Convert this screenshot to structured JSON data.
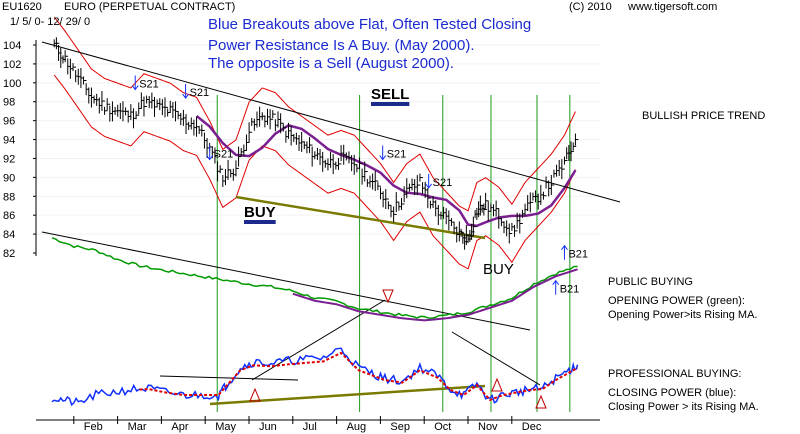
{
  "header": {
    "ticker": "EU1620",
    "name": "EURO  (PERPETUAL CONTRACT)",
    "date_range": "1/ 5/ 0- 12/ 29/ 0",
    "copyright": "(C) 2010",
    "site": "www.tigersoft.com"
  },
  "notes": {
    "line1": "Blue Breakouts above Flat, Often Tested Closing",
    "line2": "Power Resistance Is A Buy.  (May 2000).",
    "line3": "The opposite is a Sell (August 2000)."
  },
  "labels": {
    "trend": "BULLISH PRICE TREND",
    "buy1": "BUY",
    "buy2": "BUY",
    "sell": "SELL",
    "public_title": "PUBLIC BUYING",
    "opening_title": "OPENING POWER (green):",
    "opening_desc": "Opening Power>its Rising MA.",
    "pro_title": "PROFESSIONAL BUYING:",
    "closing_title": "CLOSING POWER (blue):",
    "closing_desc": "Closing Power > its Rising MA."
  },
  "signals": [
    {
      "text": "S21",
      "month": 2.9,
      "price": 99.5
    },
    {
      "text": "S21",
      "month": 4.05,
      "price": 98.6
    },
    {
      "text": "S21",
      "month": 4.6,
      "price": 92.1
    },
    {
      "text": "S21",
      "month": 8.55,
      "price": 92.1
    },
    {
      "text": "S21",
      "month": 9.6,
      "price": 89.1
    },
    {
      "text": "B21",
      "month": 12.7,
      "price": 81.5
    },
    {
      "text": "B21",
      "month": 12.5,
      "price": 77.8
    }
  ],
  "chart_data": {
    "type": "line",
    "title": "EURO  (PERPETUAL CONTRACT)",
    "x_ticks": [
      "Feb",
      "Mar",
      "Apr",
      "May",
      "Jun",
      "Jul",
      "Aug",
      "Sep",
      "Oct",
      "Nov",
      "Dec"
    ],
    "y_ticks": [
      104,
      102,
      100,
      98,
      96,
      94,
      92,
      90,
      88,
      86,
      84,
      82
    ],
    "ylim": [
      82,
      105
    ],
    "series": [
      {
        "name": "Price",
        "x": [
          1.05,
          1.3,
          1.6,
          1.9,
          2.2,
          2.5,
          2.8,
          3.1,
          3.4,
          3.7,
          4.0,
          4.3,
          4.6,
          4.9,
          5.2,
          5.5,
          5.8,
          6.1,
          6.4,
          6.7,
          7.0,
          7.3,
          7.6,
          7.9,
          8.2,
          8.5,
          8.8,
          9.1,
          9.4,
          9.7,
          10.0,
          10.3,
          10.5,
          10.7,
          10.9,
          11.2,
          11.5,
          11.8,
          12.1,
          12.4,
          12.7,
          12.95
        ],
        "y": [
          104,
          102.5,
          100.5,
          98.5,
          97.5,
          97,
          96.5,
          98,
          97.5,
          97,
          96,
          95.5,
          93,
          90,
          91,
          95,
          96.5,
          96,
          94.5,
          93.5,
          92.5,
          91.5,
          92,
          91.5,
          90,
          88.5,
          86.5,
          88.5,
          89.5,
          87,
          85.5,
          84,
          83.5,
          86.5,
          87,
          86,
          84.2,
          86.5,
          88,
          89.5,
          91.5,
          94
        ]
      },
      {
        "name": "Opening Power",
        "x": [
          1.0,
          1.5,
          2.0,
          2.5,
          3.0,
          3.5,
          4.0,
          4.5,
          5.0,
          5.5,
          6.0,
          6.5,
          7.0,
          7.5,
          8.0,
          8.5,
          9.0,
          9.5,
          10.0,
          10.5,
          11.0,
          11.5,
          12.0,
          12.5,
          13.0
        ],
        "y": [
          0.96,
          0.84,
          0.78,
          0.65,
          0.56,
          0.5,
          0.45,
          0.4,
          0.35,
          0.3,
          0.26,
          0.2,
          0.1,
          0.05,
          -0.05,
          -0.1,
          -0.15,
          -0.18,
          -0.15,
          -0.1,
          0.0,
          0.1,
          0.3,
          0.45,
          0.55
        ]
      },
      {
        "name": "Closing Power",
        "x": [
          1.0,
          1.3,
          1.6,
          2.0,
          2.4,
          2.8,
          3.2,
          3.6,
          4.0,
          4.4,
          4.8,
          5.0,
          5.3,
          5.6,
          6.0,
          6.4,
          6.8,
          7.2,
          7.6,
          8.0,
          8.3,
          8.6,
          9.0,
          9.4,
          9.8,
          10.1,
          10.4,
          10.7,
          11.0,
          11.3,
          11.6,
          11.9,
          12.2,
          12.5,
          12.8,
          13.0
        ],
        "y": [
          -0.05,
          -0.1,
          -0.15,
          0.0,
          0.05,
          0.1,
          0.12,
          0.05,
          0.0,
          0.0,
          0.0,
          0.2,
          0.5,
          0.6,
          0.58,
          0.62,
          0.65,
          0.68,
          0.85,
          0.5,
          0.4,
          0.3,
          0.25,
          0.5,
          0.35,
          0.1,
          0.0,
          0.2,
          -0.1,
          0.0,
          0.05,
          0.1,
          0.12,
          0.3,
          0.45,
          0.55
        ]
      }
    ]
  },
  "colors": {
    "price": "#000000",
    "ma": "#7a1f8f",
    "band": "#e00000",
    "opening_power": "#009a00",
    "closing_power": "#1030ff",
    "closing_ma": "#e00000",
    "vertical_lines": "#1a9a1a",
    "support_line": "#7a7a00",
    "note_text": "#1b2bd0"
  }
}
